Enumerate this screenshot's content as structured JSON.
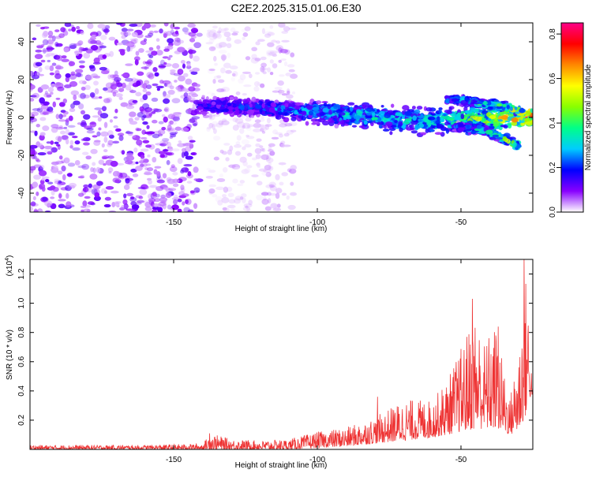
{
  "page_title": "C2E2.2025.315.01.06.E30",
  "chart_data": [
    {
      "type": "heatmap",
      "xlabel": "Height of straight line (km)",
      "ylabel": "Frequency (Hz)",
      "xlim": [
        -200,
        -25
      ],
      "ylim": [
        -50,
        50
      ],
      "xticks": [
        -150,
        -100,
        -50
      ],
      "yticks": [
        40,
        20,
        0,
        -20,
        -40
      ],
      "colorbar": {
        "label": "Normalized spectral amplitude",
        "range": [
          0,
          0.85
        ],
        "ticks": [
          "0.0",
          "0.2",
          "0.4",
          "0.6",
          "0.8"
        ],
        "colors": [
          "#ffffff",
          "#8800ff",
          "#0000ff",
          "#00ccff",
          "#00ff88",
          "#88ff00",
          "#ffff00",
          "#ff8800",
          "#ff0000",
          "#ff0088"
        ]
      },
      "regions": [
        {
          "x": [
            -200,
            -141
          ],
          "freq_range": [
            -50,
            50
          ],
          "amplitude": 0.08,
          "pattern": "scattered"
        },
        {
          "x": [
            -138,
            -123
          ],
          "freq_range": [
            -50,
            50
          ],
          "amplitude": 0.03,
          "pattern": "faint"
        },
        {
          "x": [
            -122,
            -108
          ],
          "freq_range": [
            -50,
            50
          ],
          "amplitude": 0.04,
          "pattern": "faint"
        }
      ],
      "ridges": [
        {
          "x": [
            -141,
            -120,
            -100,
            -80,
            -60,
            -45,
            -35,
            -25
          ],
          "freq": [
            6,
            5,
            3,
            0,
            -2,
            -1,
            0,
            0
          ],
          "width": [
            6,
            6,
            7,
            8,
            9,
            10,
            8,
            6
          ],
          "amplitude": [
            0.15,
            0.2,
            0.25,
            0.3,
            0.3,
            0.4,
            0.5,
            0.75
          ]
        },
        {
          "x": [
            -55,
            -45,
            -35,
            -28
          ],
          "freq": [
            10,
            8,
            6,
            2
          ],
          "width": [
            3,
            3,
            3,
            3
          ],
          "amplitude": [
            0.25,
            0.3,
            0.4,
            0.6
          ]
        },
        {
          "x": [
            -52,
            -42,
            -34,
            -30
          ],
          "freq": [
            -5,
            -7,
            -12,
            -15
          ],
          "width": [
            3,
            3,
            3,
            3
          ],
          "amplitude": [
            0.2,
            0.3,
            0.4,
            0.45
          ]
        }
      ]
    },
    {
      "type": "line",
      "xlabel": "Height of straight line (km)",
      "ylabel": "SNR (10 * v/v)",
      "scale_note": "(x10",
      "scale_exp": "4",
      "xlim": [
        -200,
        -25
      ],
      "ylim": [
        0,
        1.3
      ],
      "xticks": [
        -150,
        -100,
        -50
      ],
      "yticks": [
        0.2,
        0.4,
        0.6,
        0.8,
        1.0,
        1.2
      ],
      "ytick_labels": [
        "0.2",
        "0.4",
        "0.6",
        "0.8",
        "1.0",
        "1.2"
      ],
      "color": "#ee3333",
      "envelope": {
        "x": [
          -200,
          -160,
          -140,
          -137,
          -130,
          -120,
          -110,
          -100,
          -90,
          -80,
          -70,
          -60,
          -55,
          -50,
          -45,
          -42,
          -38,
          -33,
          -30,
          -27,
          -26,
          -25
        ],
        "y_low": [
          0.0,
          0.0,
          0.0,
          0.0,
          0.0,
          0.0,
          0.0,
          0.01,
          0.02,
          0.04,
          0.06,
          0.08,
          0.1,
          0.12,
          0.14,
          0.14,
          0.14,
          0.1,
          0.12,
          0.25,
          0.35,
          0.38
        ],
        "y_high": [
          0.03,
          0.03,
          0.04,
          0.11,
          0.07,
          0.06,
          0.07,
          0.12,
          0.15,
          0.22,
          0.34,
          0.34,
          0.47,
          0.7,
          0.95,
          0.74,
          0.86,
          0.35,
          0.7,
          1.26,
          0.67,
          0.45
        ]
      },
      "peaks": [
        [
          -137.5,
          0.11
        ],
        [
          -79,
          0.36
        ],
        [
          -46,
          1.03
        ],
        [
          -37,
          0.84
        ],
        [
          -28,
          1.3
        ]
      ]
    }
  ]
}
